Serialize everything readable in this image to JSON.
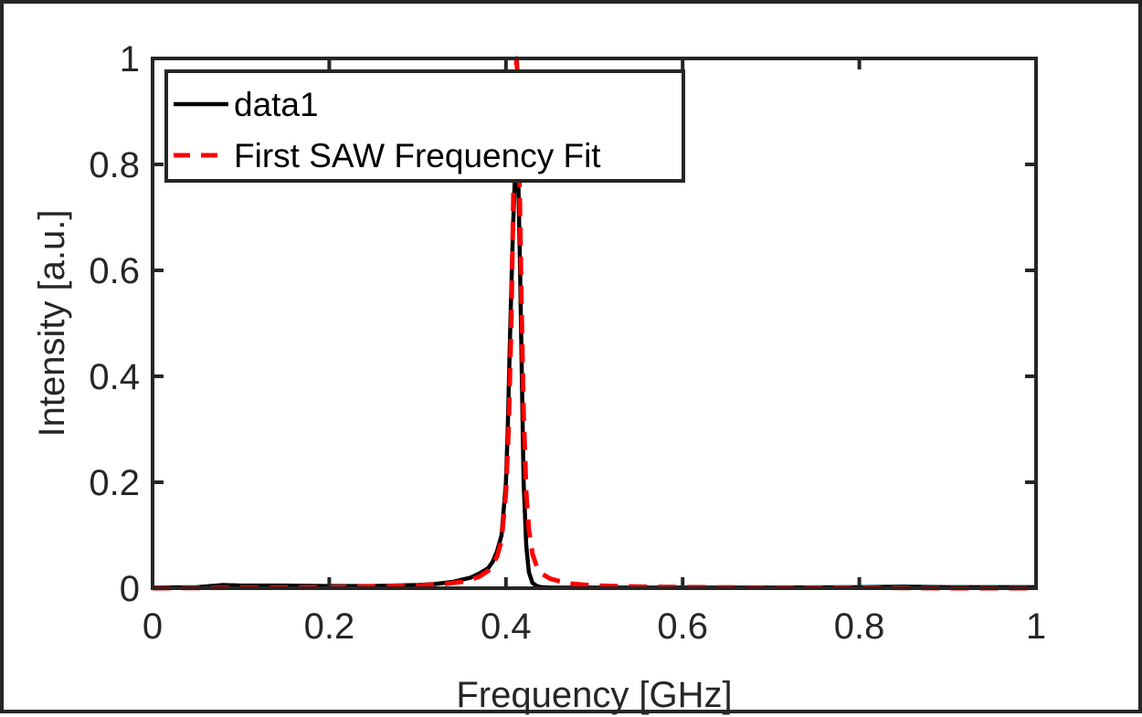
{
  "chart_data": {
    "type": "line",
    "xlabel": "Frequency [GHz]",
    "ylabel": "Intensity [a.u.]",
    "xlim": [
      0,
      1
    ],
    "ylim": [
      0,
      1
    ],
    "x_ticks": [
      0,
      0.2,
      0.4,
      0.6,
      0.8,
      1
    ],
    "x_tick_labels": [
      "0",
      "0.2",
      "0.4",
      "0.6",
      "0.8",
      "1"
    ],
    "y_ticks": [
      0,
      0.2,
      0.4,
      0.6,
      0.8,
      1
    ],
    "y_tick_labels": [
      "0",
      "0.2",
      "0.4",
      "0.6",
      "0.8",
      "1"
    ],
    "grid": false,
    "legend_position": "top-left",
    "series": [
      {
        "name": "data1",
        "color": "#000000",
        "style": "solid",
        "x": [
          0,
          0.05,
          0.08,
          0.1,
          0.15,
          0.2,
          0.25,
          0.3,
          0.32,
          0.34,
          0.36,
          0.37,
          0.38,
          0.385,
          0.39,
          0.395,
          0.4,
          0.402,
          0.405,
          0.408,
          0.41,
          0.412,
          0.414,
          0.416,
          0.418,
          0.42,
          0.423,
          0.426,
          0.43,
          0.435,
          0.44,
          0.45,
          0.5,
          0.6,
          0.7,
          0.8,
          0.85,
          0.9,
          1
        ],
        "y": [
          0.001,
          0.002,
          0.006,
          0.005,
          0.005,
          0.004,
          0.004,
          0.006,
          0.008,
          0.012,
          0.02,
          0.028,
          0.038,
          0.05,
          0.07,
          0.1,
          0.2,
          0.3,
          0.5,
          0.68,
          0.77,
          0.8,
          0.77,
          0.6,
          0.4,
          0.2,
          0.08,
          0.03,
          0.01,
          0.004,
          0.002,
          0.001,
          0.001,
          0.001,
          0.001,
          0.002,
          0.003,
          0.002,
          0.002
        ]
      },
      {
        "name": "First SAW Frequency Fit",
        "color": "#ff0000",
        "style": "dashed",
        "x": [
          0,
          0.1,
          0.2,
          0.3,
          0.33,
          0.35,
          0.36,
          0.37,
          0.38,
          0.39,
          0.395,
          0.4,
          0.403,
          0.406,
          0.408,
          0.41,
          0.411,
          0.412,
          0.413,
          0.414,
          0.416,
          0.418,
          0.42,
          0.423,
          0.426,
          0.43,
          0.435,
          0.44,
          0.45,
          0.47,
          0.5,
          0.55,
          0.6,
          0.7,
          0.8,
          0.9,
          1
        ],
        "y": [
          0.0,
          0.001,
          0.002,
          0.005,
          0.008,
          0.012,
          0.016,
          0.022,
          0.033,
          0.06,
          0.09,
          0.18,
          0.3,
          0.5,
          0.7,
          0.9,
          0.97,
          1.0,
          0.97,
          0.9,
          0.7,
          0.5,
          0.33,
          0.18,
          0.11,
          0.065,
          0.04,
          0.028,
          0.018,
          0.009,
          0.005,
          0.003,
          0.002,
          0.001,
          0.001,
          0.0,
          0.0
        ]
      }
    ]
  }
}
